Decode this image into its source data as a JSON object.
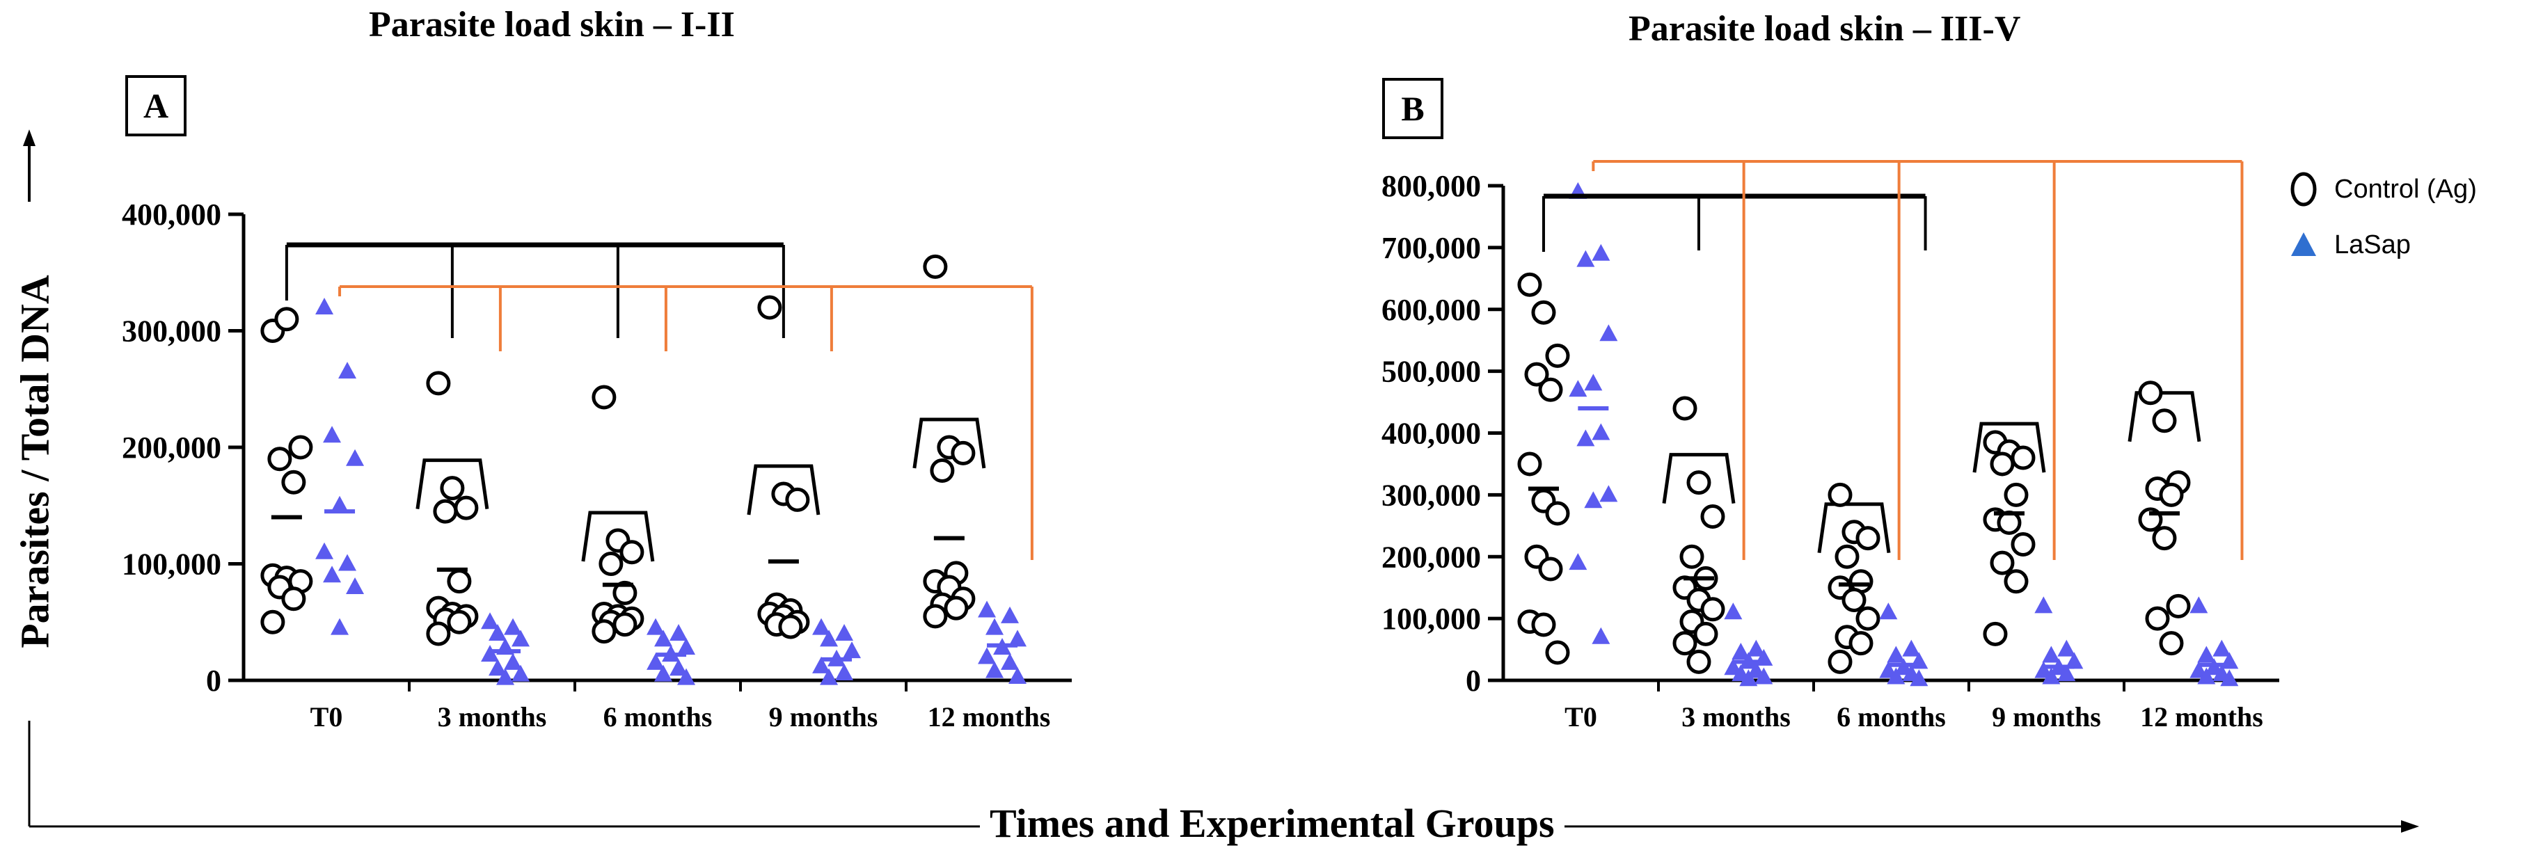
{
  "figure": {
    "y_axis_label": "Parasites / Total DNA",
    "x_axis_label": "Times and Experimental Groups",
    "legend": [
      {
        "label": "Control (Ag)",
        "marker": "circle"
      },
      {
        "label": "LaSap",
        "marker": "triangle"
      }
    ],
    "colors": {
      "control": "#000000",
      "lasap": "#5b5bef",
      "orange": "#ef7d3a",
      "black": "#000000"
    }
  },
  "chart_data": [
    {
      "type": "scatter",
      "panel": "A",
      "title": "Parasite load skin – I-II",
      "ylim": [
        0,
        400000
      ],
      "yticks": [
        "0",
        "100,000",
        "200,000",
        "300,000",
        "400,000"
      ],
      "ytick_values": [
        0,
        100000,
        200000,
        300000,
        400000
      ],
      "categories": [
        "T0",
        "3 months",
        "6 months",
        "9 months",
        "12 months"
      ],
      "series": [
        {
          "name": "Control (Ag)",
          "means": [
            140000,
            95000,
            82000,
            102000,
            122000
          ],
          "points": [
            [
              300000,
              310000,
              200000,
              190000,
              170000,
              90000,
              88000,
              85000,
              80000,
              70000,
              50000
            ],
            [
              255000,
              165000,
              148000,
              145000,
              85000,
              62000,
              57000,
              55000,
              52000,
              50000,
              40000
            ],
            [
              243000,
              120000,
              110000,
              100000,
              75000,
              57000,
              55000,
              53000,
              50000,
              48000,
              42000
            ],
            [
              320000,
              160000,
              155000,
              65000,
              60000,
              57000,
              55000,
              50000,
              48000,
              46000
            ],
            [
              355000,
              200000,
              195000,
              180000,
              92000,
              85000,
              80000,
              70000,
              65000,
              62000,
              55000
            ]
          ]
        },
        {
          "name": "LaSap",
          "means": [
            145000,
            25000,
            22000,
            18000,
            30000
          ],
          "points": [
            [
              320000,
              265000,
              210000,
              190000,
              150000,
              110000,
              100000,
              90000,
              80000,
              45000
            ],
            [
              50000,
              45000,
              40000,
              35000,
              28000,
              22000,
              15000,
              10000,
              5000,
              2000
            ],
            [
              45000,
              40000,
              35000,
              28000,
              22000,
              15000,
              10000,
              5000,
              2000
            ],
            [
              45000,
              40000,
              35000,
              25000,
              18000,
              12000,
              6000,
              2000
            ],
            [
              60000,
              55000,
              45000,
              35000,
              28000,
              20000,
              15000,
              8000,
              3000
            ]
          ]
        }
      ],
      "significance": {
        "black_ticks": [
          0,
          1,
          2,
          3
        ],
        "orange_ticks": [
          1,
          2,
          3,
          4
        ]
      }
    },
    {
      "type": "scatter",
      "panel": "B",
      "title": "Parasite load skin – III-V",
      "ylim": [
        0,
        800000
      ],
      "yticks": [
        "0",
        "100,000",
        "200,000",
        "300,000",
        "400,000",
        "500,000",
        "600,000",
        "700,000",
        "800,000"
      ],
      "ytick_values": [
        0,
        100000,
        200000,
        300000,
        400000,
        500000,
        600000,
        700000,
        800000
      ],
      "categories": [
        "T0",
        "3 months",
        "6 months",
        "9 months",
        "12 months"
      ],
      "series": [
        {
          "name": "Control (Ag)",
          "means": [
            310000,
            165000,
            155000,
            270000,
            270000
          ],
          "points": [
            [
              640000,
              595000,
              525000,
              495000,
              470000,
              350000,
              290000,
              270000,
              200000,
              180000,
              95000,
              90000,
              45000
            ],
            [
              440000,
              320000,
              265000,
              200000,
              165000,
              150000,
              130000,
              115000,
              95000,
              75000,
              60000,
              30000
            ],
            [
              300000,
              240000,
              230000,
              200000,
              160000,
              150000,
              130000,
              100000,
              70000,
              60000,
              30000
            ],
            [
              385000,
              370000,
              360000,
              350000,
              300000,
              260000,
              255000,
              220000,
              190000,
              160000,
              75000
            ],
            [
              465000,
              420000,
              320000,
              310000,
              300000,
              260000,
              230000,
              120000,
              100000,
              60000
            ]
          ]
        },
        {
          "name": "LaSap",
          "means": [
            440000,
            30000,
            25000,
            22000,
            25000
          ],
          "points": [
            [
              790000,
              690000,
              680000,
              560000,
              480000,
              470000,
              400000,
              390000,
              300000,
              290000,
              190000,
              70000
            ],
            [
              110000,
              50000,
              45000,
              35000,
              30000,
              20000,
              15000,
              10000,
              5000,
              2000
            ],
            [
              110000,
              50000,
              40000,
              30000,
              20000,
              15000,
              10000,
              5000,
              2000
            ],
            [
              120000,
              50000,
              40000,
              30000,
              20000,
              15000,
              10000,
              5000
            ],
            [
              120000,
              50000,
              40000,
              30000,
              20000,
              15000,
              10000,
              5000,
              2000
            ]
          ]
        }
      ],
      "significance": {
        "black_ticks": [
          0,
          1,
          2
        ],
        "orange_ticks": [
          1,
          2,
          3,
          4
        ]
      }
    }
  ]
}
